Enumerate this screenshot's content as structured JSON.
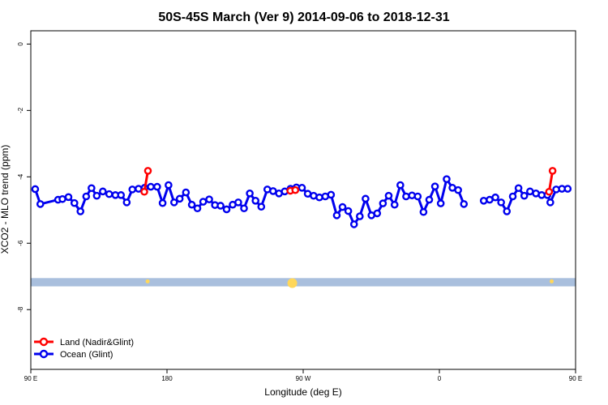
{
  "chart_data": {
    "type": "line",
    "title": "50S-45S March (Ver 9)   2014-09-06 to 2018-12-31",
    "xlabel": "Longitude (deg E)",
    "ylabel": "XCO2 - MLO trend (ppm)",
    "xlim": [
      90,
      450
    ],
    "ylim": [
      -9.8,
      0.4
    ],
    "x_ticks": [
      {
        "value": 90,
        "label": "90 E"
      },
      {
        "value": 180,
        "label": "180"
      },
      {
        "value": 270,
        "label": "90 W"
      },
      {
        "value": 360,
        "label": "0"
      },
      {
        "value": 450,
        "label": "90 E"
      },
      {
        "value": 540,
        "label": "180"
      }
    ],
    "y_ticks": [
      {
        "value": 0,
        "label": "0"
      },
      {
        "value": -2,
        "label": "-2"
      },
      {
        "value": -4,
        "label": "-4"
      },
      {
        "value": -6,
        "label": "-6"
      },
      {
        "value": -8,
        "label": "-8"
      }
    ],
    "grid": false,
    "legend_position": "bottom-left",
    "series": [
      {
        "name": "Land (Nadir&Glint)",
        "color": "#ff0000",
        "segments": [
          [
            [
              165.0,
              -4.45
            ],
            [
              167.4,
              -3.82
            ]
          ],
          [
            [
              261.5,
              -4.42
            ],
            [
              264.8,
              -4.4
            ]
          ],
          [
            [
              432.5,
              -4.45
            ],
            [
              434.8,
              -3.82
            ]
          ]
        ]
      },
      {
        "name": "Ocean (Glint)",
        "color": "#0000ee",
        "segments": [
          [
            [
              92.9,
              -4.37
            ],
            [
              96.3,
              -4.82
            ],
            [
              108.0,
              -4.69
            ],
            [
              110.9,
              -4.67
            ],
            [
              114.9,
              -4.61
            ],
            [
              118.8,
              -4.79
            ],
            [
              122.8,
              -5.04
            ],
            [
              126.6,
              -4.59
            ],
            [
              130.1,
              -4.34
            ],
            [
              133.6,
              -4.57
            ],
            [
              137.6,
              -4.44
            ],
            [
              141.8,
              -4.52
            ],
            [
              145.9,
              -4.55
            ],
            [
              149.6,
              -4.55
            ],
            [
              153.4,
              -4.77
            ],
            [
              157.1,
              -4.38
            ],
            [
              161.2,
              -4.36
            ],
            [
              165.2,
              -4.33
            ],
            [
              169.3,
              -4.3
            ],
            [
              173.5,
              -4.3
            ],
            [
              177.1,
              -4.79
            ],
            [
              181.0,
              -4.25
            ],
            [
              184.7,
              -4.77
            ],
            [
              188.4,
              -4.66
            ],
            [
              192.5,
              -4.47
            ],
            [
              196.4,
              -4.84
            ],
            [
              200.1,
              -4.95
            ],
            [
              203.9,
              -4.75
            ],
            [
              207.9,
              -4.68
            ],
            [
              211.7,
              -4.85
            ],
            [
              215.4,
              -4.87
            ],
            [
              219.4,
              -4.98
            ],
            [
              223.4,
              -4.84
            ],
            [
              227.1,
              -4.77
            ],
            [
              230.9,
              -4.95
            ],
            [
              234.7,
              -4.5
            ],
            [
              238.5,
              -4.72
            ],
            [
              242.3,
              -4.9
            ],
            [
              246.3,
              -4.38
            ],
            [
              250.1,
              -4.43
            ],
            [
              254.0,
              -4.5
            ],
            [
              257.8,
              -4.44
            ],
            [
              261.6,
              -4.36
            ],
            [
              265.5,
              -4.32
            ],
            [
              269.2,
              -4.33
            ],
            [
              273.0,
              -4.51
            ],
            [
              276.9,
              -4.57
            ],
            [
              280.7,
              -4.62
            ],
            [
              284.6,
              -4.59
            ],
            [
              288.4,
              -4.54
            ],
            [
              292.2,
              -5.16
            ],
            [
              296.0,
              -4.91
            ],
            [
              299.8,
              -5.03
            ],
            [
              303.6,
              -5.43
            ],
            [
              307.4,
              -5.19
            ],
            [
              311.2,
              -4.66
            ],
            [
              315.1,
              -5.16
            ],
            [
              318.9,
              -5.1
            ],
            [
              322.7,
              -4.8
            ],
            [
              326.5,
              -4.57
            ],
            [
              330.4,
              -4.84
            ],
            [
              334.2,
              -4.25
            ],
            [
              338.0,
              -4.59
            ],
            [
              341.9,
              -4.56
            ],
            [
              345.7,
              -4.59
            ],
            [
              349.5,
              -5.06
            ],
            [
              353.3,
              -4.69
            ],
            [
              357.1,
              -4.29
            ],
            [
              360.9,
              -4.8
            ],
            [
              364.8,
              -4.07
            ],
            [
              368.6,
              -4.33
            ],
            [
              372.4,
              -4.4
            ],
            [
              376.2,
              -4.82
            ]
          ],
          [
            [
              389.3,
              -4.72
            ],
            [
              393.2,
              -4.69
            ],
            [
              397.0,
              -4.62
            ],
            [
              400.8,
              -4.77
            ],
            [
              404.6,
              -5.04
            ],
            [
              408.5,
              -4.59
            ],
            [
              412.3,
              -4.34
            ],
            [
              416.1,
              -4.57
            ],
            [
              419.9,
              -4.44
            ],
            [
              423.8,
              -4.5
            ],
            [
              427.6,
              -4.55
            ],
            [
              431.4,
              -4.55
            ],
            [
              433.3,
              -4.77
            ],
            [
              437.2,
              -4.38
            ],
            [
              441.0,
              -4.36
            ],
            [
              444.8,
              -4.36
            ]
          ]
        ]
      }
    ],
    "highlight_band": {
      "y_range": [
        -7.3,
        -7.05
      ],
      "color": "#a9bfdd",
      "markers": [
        {
          "x": 167.2,
          "y": -7.15,
          "size": "small",
          "color": "#ffd75a"
        },
        {
          "x": 262.8,
          "y": -7.2,
          "size": "large",
          "color": "#ffd75a"
        },
        {
          "x": 434.2,
          "y": -7.15,
          "size": "small",
          "color": "#ffd75a"
        }
      ]
    }
  }
}
